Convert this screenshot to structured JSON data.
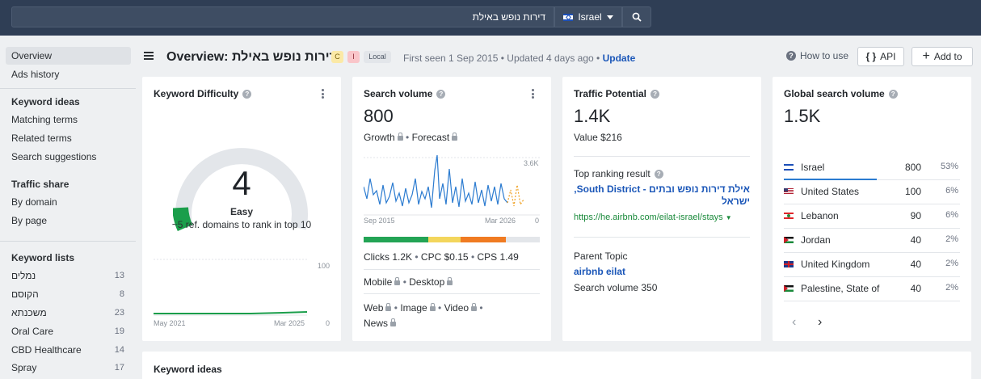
{
  "search": {
    "query": "דירות נופש באילת",
    "country": "Israel"
  },
  "sidebar": {
    "top_items": [
      {
        "label": "Overview",
        "active": true
      },
      {
        "label": "Ads history"
      }
    ],
    "keyword_ideas": {
      "heading": "Keyword ideas",
      "items": [
        "Matching terms",
        "Related terms",
        "Search suggestions"
      ]
    },
    "traffic_share": {
      "heading": "Traffic share",
      "items": [
        "By domain",
        "By page"
      ]
    },
    "keyword_lists": {
      "heading": "Keyword lists",
      "items": [
        {
          "label": "נמלים",
          "count": "13"
        },
        {
          "label": "הקוסם",
          "count": "8"
        },
        {
          "label": "משכנתא",
          "count": "23"
        },
        {
          "label": "Oral Care",
          "count": "19"
        },
        {
          "label": "CBD Healthcare",
          "count": "14"
        },
        {
          "label": "Spray",
          "count": "17"
        }
      ]
    }
  },
  "header": {
    "title": "Overview: דירות נופש באילת",
    "badge_c": "C",
    "badge_i": "I",
    "badge_local": "Local",
    "first_seen": "First seen 1 Sep 2015",
    "updated": "Updated 4 days ago",
    "update_label": "Update",
    "how_to_use": "How to use",
    "api_label": "API",
    "add_to_label": "Add to"
  },
  "kd_card": {
    "title": "Keyword Difficulty",
    "value": "4",
    "difficulty_fraction": 0.04,
    "label": "Easy",
    "note": "~5 ref. domains to rank in top 10",
    "chart_max": "100",
    "chart_min": "0",
    "date_start": "May 2021",
    "date_end": "Mar 2025"
  },
  "sv_card": {
    "title": "Search volume",
    "value": "800",
    "growth_label": "Growth",
    "forecast_label": "Forecast",
    "chart_max": "3.6K",
    "chart_min": "0",
    "date_start": "Sep 2015",
    "date_end": "Mar 2026",
    "clicks": "Clicks 1.2K",
    "cpc": "CPC $0.15",
    "cps": "CPS 1.49",
    "mobile_label": "Mobile",
    "desktop_label": "Desktop",
    "web_label": "Web",
    "image_label": "Image",
    "video_label": "Video",
    "news_label": "News"
  },
  "tp_card": {
    "title": "Traffic Potential",
    "value": "1.4K",
    "value_usd": "Value $216",
    "top_ranking_label": "Top ranking result",
    "top_result_title": "אילת דירות נופש ובתים - South District, ישראל",
    "top_result_url": "https://he.airbnb.com/eilat-israel/stays",
    "parent_topic_label": "Parent Topic",
    "parent_topic": "airbnb eilat",
    "parent_volume": "Search volume 350"
  },
  "gsv_card": {
    "title": "Global search volume",
    "value": "1.5K",
    "rows": [
      {
        "country": "Israel",
        "volume": "800",
        "pct": "53%"
      },
      {
        "country": "United States",
        "volume": "100",
        "pct": "6%"
      },
      {
        "country": "Lebanon",
        "volume": "90",
        "pct": "6%"
      },
      {
        "country": "Jordan",
        "volume": "40",
        "pct": "2%"
      },
      {
        "country": "United Kingdom",
        "volume": "40",
        "pct": "2%"
      },
      {
        "country": "Palestine, State of",
        "volume": "40",
        "pct": "2%"
      }
    ]
  },
  "keyword_ideas_section": {
    "title": "Keyword ideas"
  },
  "colors": {
    "topbar": "#2f3e55",
    "accent_blue": "#1a56b8",
    "link_green": "#1a8a3b",
    "gauge_green": "#1b9e4b",
    "bar_green": "#23a455",
    "bar_yellow": "#f3d65c",
    "bar_orange": "#f07b22"
  }
}
